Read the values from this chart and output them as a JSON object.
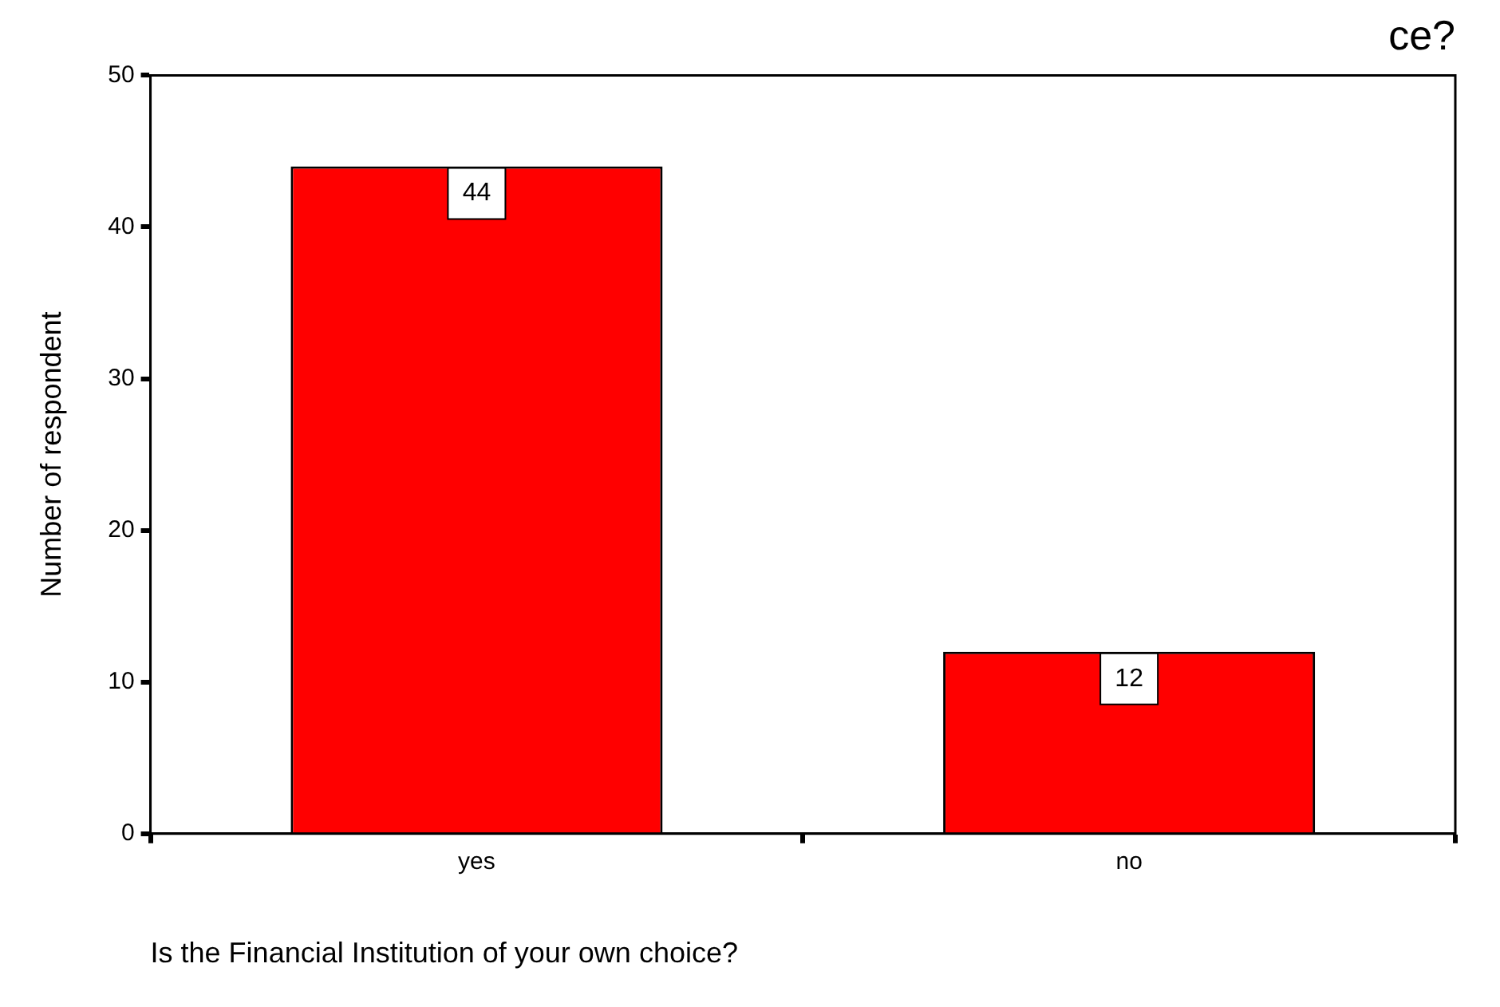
{
  "chart_data": {
    "type": "bar",
    "title": "ce?",
    "xlabel": "Is the Financial Institution of your own choice?",
    "ylabel": "Number of respondent",
    "categories": [
      "yes",
      "no"
    ],
    "values": [
      44,
      12
    ],
    "color": "#ff0000",
    "ylim": [
      0,
      50
    ],
    "yticks": [
      0,
      10,
      20,
      30,
      40,
      50
    ],
    "grid": false,
    "legend": false,
    "data_labels": true
  }
}
